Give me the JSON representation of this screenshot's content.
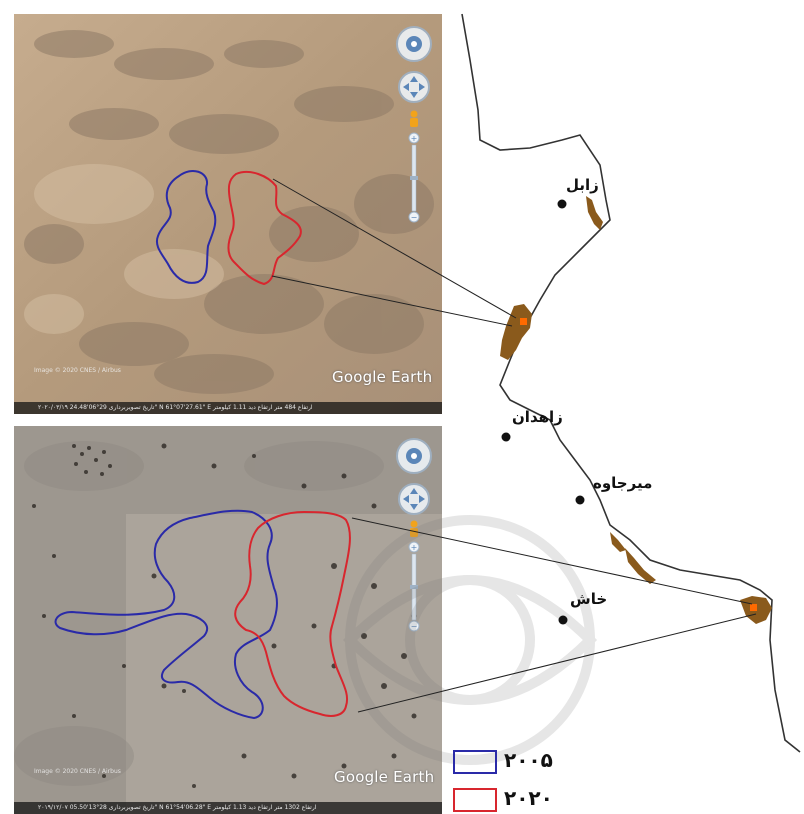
{
  "colors": {
    "outline_2005": "#2a2aa8",
    "outline_2020": "#d8262e",
    "sand_deposit": "#8a5a1c",
    "border_line": "#333333"
  },
  "cities": [
    {
      "id": "zabol",
      "name": "زابل"
    },
    {
      "id": "zahedan",
      "name": "زاهدان"
    },
    {
      "id": "mirjaveh",
      "name": "میرجاوه"
    },
    {
      "id": "khash",
      "name": "خاش"
    }
  ],
  "legend": [
    {
      "year": "۲۰۰۵",
      "color": "#2a2aa8"
    },
    {
      "year": "۲۰۲۰",
      "color": "#d8262e"
    }
  ],
  "panels": {
    "top": {
      "watermark": "Google Earth",
      "credit": "Image © 2020 CNES / Airbus",
      "status": "۲۰۲۰/۰۳/۱۹ تاریخ تصویربرداری   29°06'24.48\" N  61°07'27.61\" E   ارتفاع 484 متر   ارتفاع دید 1.11 کیلومتر"
    },
    "bottom": {
      "watermark": "Google Earth",
      "credit": "Image © 2020 CNES / Airbus",
      "status": "۲۰۱۹/۱۲/۰۷ تاریخ تصویربرداری   28°13'05.50\" N  61°54'06.28\" E   ارتفاع 1302 متر   ارتفاع دید 1.13 کیلومتر"
    }
  },
  "nav_icons": [
    "look-control-icon",
    "move-control-icon",
    "street-view-pegman-icon",
    "zoom-slider-icon"
  ]
}
